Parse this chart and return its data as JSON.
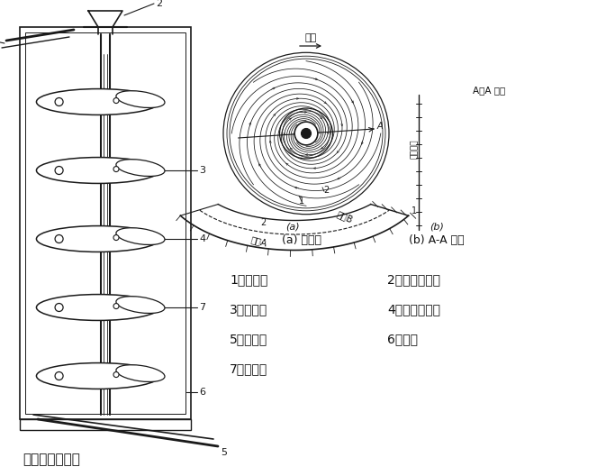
{
  "bg_color": "#ffffff",
  "title_bottom": "螺旋溜槽的外形",
  "legend_items": [
    [
      "1、给矿槽",
      "2、冲洗水导槽"
    ],
    [
      "3、螺旋槽",
      "4、连接法兰盘"
    ],
    [
      "5、尾矿槽",
      "6、机架"
    ],
    [
      "7、精矿管",
      ""
    ]
  ],
  "caption_a_small": "(a)",
  "caption_a": "(a) 俦视图",
  "caption_b_small": "(b)",
  "caption_b": "(b) A-A 视图",
  "label_liuliu": "液流",
  "label_aa": "A－A 断面",
  "label_quyu_a": "区域A",
  "label_quyu_b": "区域B",
  "label_caozhou": "槽的轴线",
  "line_color": "#1a1a1a",
  "text_color": "#111111"
}
